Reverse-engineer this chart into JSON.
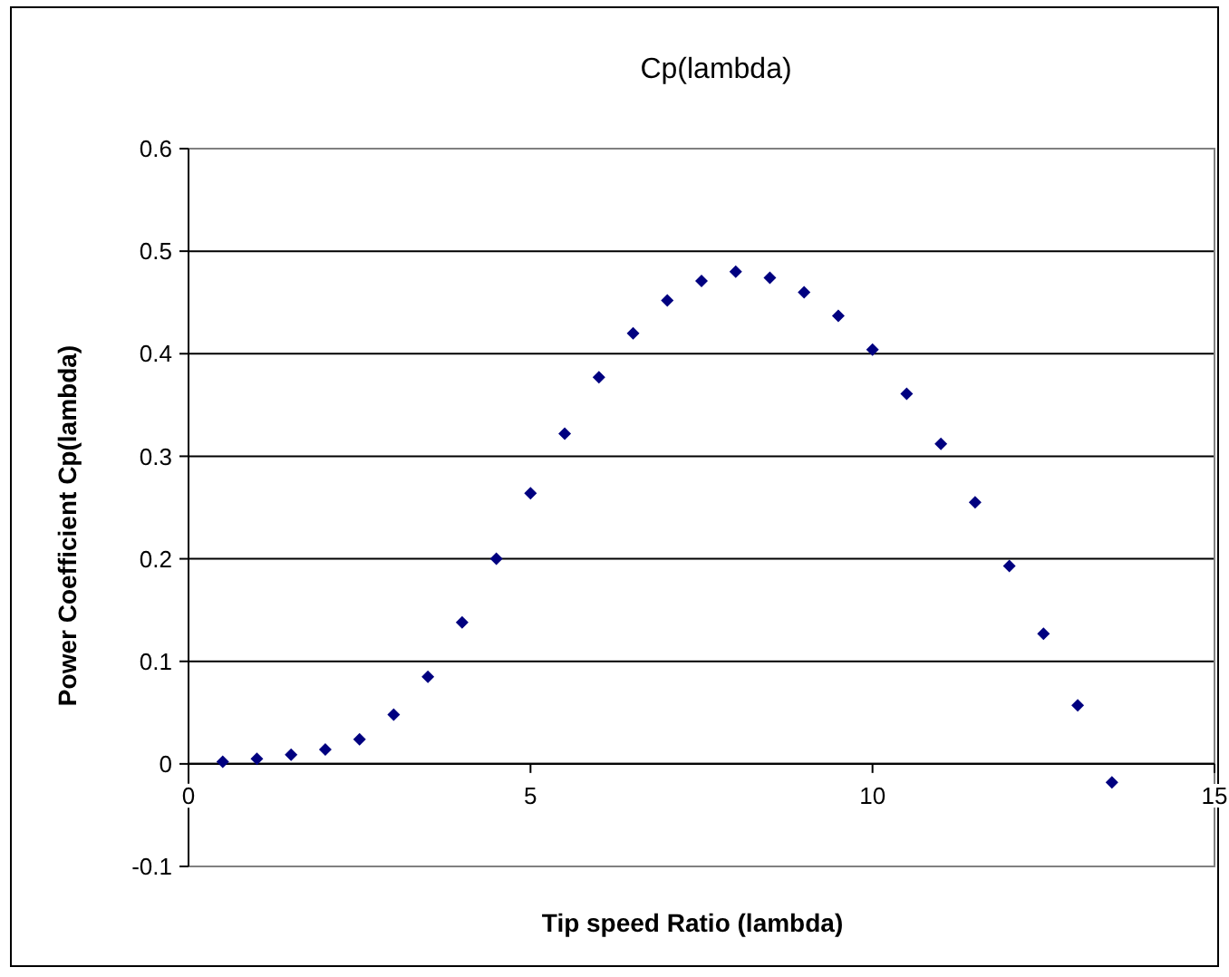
{
  "chart_data": {
    "type": "scatter",
    "title": "Cp(lambda)",
    "xlabel": "Tip speed Ratio (lambda)",
    "ylabel": "Power Coefficient Cp(lambda)",
    "x": [
      0.5,
      1,
      1.5,
      2,
      2.5,
      3,
      3.5,
      4,
      4.5,
      5,
      5.5,
      6,
      6.5,
      7,
      7.5,
      8,
      8.5,
      9,
      9.5,
      10,
      10.5,
      11,
      11.5,
      12,
      12.5,
      13,
      13.5
    ],
    "series": [
      {
        "color": "#000080",
        "values": [
          0.002,
          0.005,
          0.009,
          0.014,
          0.024,
          0.048,
          0.085,
          0.138,
          0.2,
          0.264,
          0.322,
          0.377,
          0.42,
          0.452,
          0.471,
          0.48,
          0.474,
          0.46,
          0.437,
          0.404,
          0.361,
          0.312,
          0.255,
          0.193,
          0.127,
          0.057,
          -0.018
        ]
      }
    ],
    "xlim": [
      0,
      15
    ],
    "xticks": [
      0,
      5,
      10,
      15
    ],
    "ylim": [
      -0.1,
      0.6
    ],
    "yticks": [
      -0.1,
      0,
      0.1,
      0.2,
      0.3,
      0.4,
      0.5,
      0.6
    ],
    "grid": "y",
    "marker": "diamond"
  }
}
